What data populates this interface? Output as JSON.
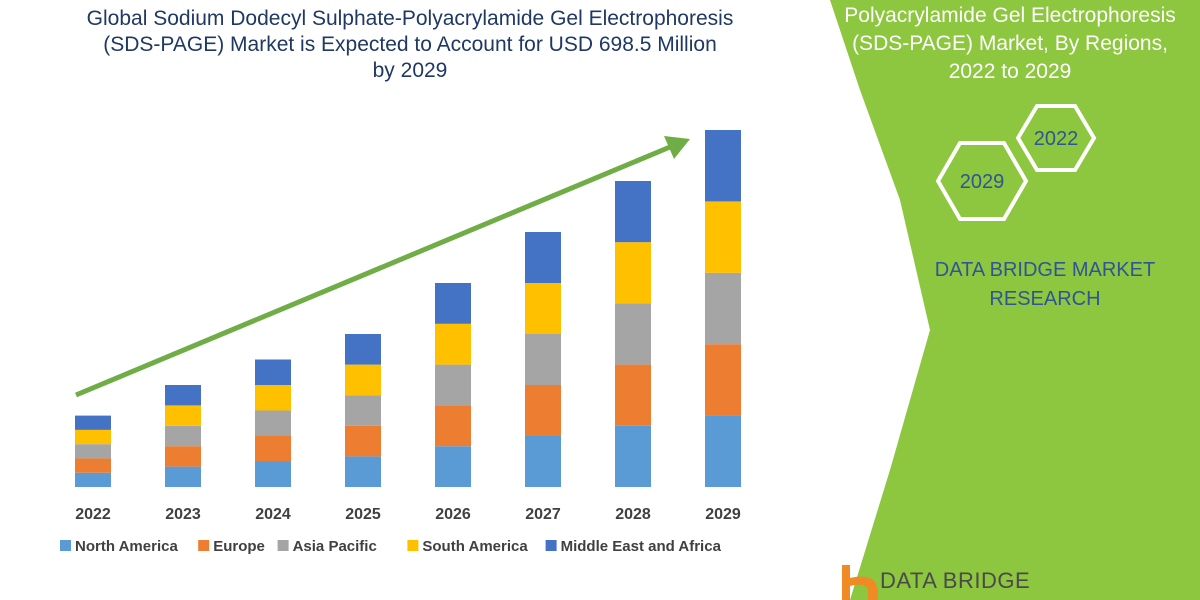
{
  "header": {
    "title_lines": [
      "Global Sodium Dodecyl Sulphate-Polyacrylamide Gel Electrophoresis",
      "(SDS-PAGE) Market is Expected to Account for USD 698.5 Million",
      "by 2029"
    ]
  },
  "side_panel": {
    "title_lines": [
      "Polyacrylamide Gel Electrophoresis",
      "(SDS-PAGE) Market, By Regions,",
      "2022 to 2029"
    ],
    "hexagons": [
      "2022",
      "2029"
    ],
    "research_lines": [
      "DATA BRIDGE MARKET",
      "RESEARCH"
    ],
    "logo_text": "DATA BRIDGE",
    "panel_color": "#8dc63f",
    "hex_color": "#ffffff"
  },
  "chart_data": {
    "type": "bar",
    "stacked": true,
    "categories": [
      "2022",
      "2023",
      "2024",
      "2025",
      "2026",
      "2027",
      "2028",
      "2029"
    ],
    "series": [
      {
        "name": "North America",
        "color": "#5b9bd5",
        "values": [
          2.8,
          4,
          5,
          6,
          8,
          10,
          12,
          14
        ]
      },
      {
        "name": "Europe",
        "color": "#ed7d31",
        "values": [
          2.8,
          4,
          5,
          6,
          8,
          10,
          12,
          14
        ]
      },
      {
        "name": "Asia Pacific",
        "color": "#a5a5a5",
        "values": [
          2.8,
          4,
          5,
          6,
          8,
          10,
          12,
          14
        ]
      },
      {
        "name": "South America",
        "color": "#ffc000",
        "values": [
          2.8,
          4,
          5,
          6,
          8,
          10,
          12,
          14
        ]
      },
      {
        "name": "Middle East and Africa",
        "color": "#4472c4",
        "values": [
          2.8,
          4,
          5,
          6,
          8,
          10,
          12,
          14
        ]
      }
    ],
    "ylim": [
      0,
      70
    ],
    "legend": "bottom",
    "trend_arrow_color": "#70ad47",
    "grid": false
  }
}
